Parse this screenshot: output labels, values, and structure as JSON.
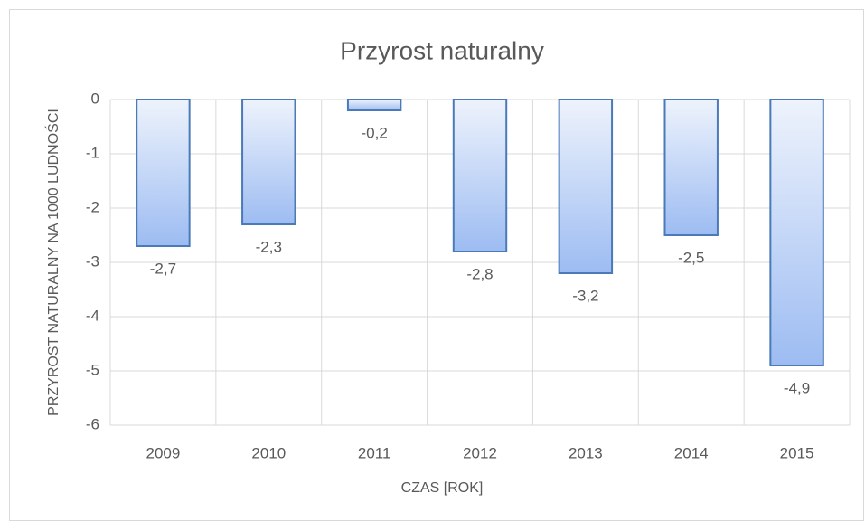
{
  "chart_data": {
    "type": "bar",
    "title": "Przyrost naturalny",
    "x_label": "CZAS [ROK]",
    "y_label": "PRZYROST NATURALNY NA 1000 LUDNOŚCI",
    "categories": [
      "2009",
      "2010",
      "2011",
      "2012",
      "2013",
      "2014",
      "2015"
    ],
    "values": [
      -2.7,
      -2.3,
      -0.2,
      -2.8,
      -3.2,
      -2.5,
      -4.9
    ],
    "value_labels": [
      "-2,7",
      "-2,3",
      "-0,2",
      "-2,8",
      "-3,2",
      "-2,5",
      "-4,9"
    ],
    "color": "#9dbcf2",
    "edge_color": "#4a7ab8",
    "ylim": [
      -6,
      0
    ],
    "yticks": [
      0,
      -1,
      -2,
      -3,
      -4,
      -5,
      -6
    ],
    "grid": true
  }
}
